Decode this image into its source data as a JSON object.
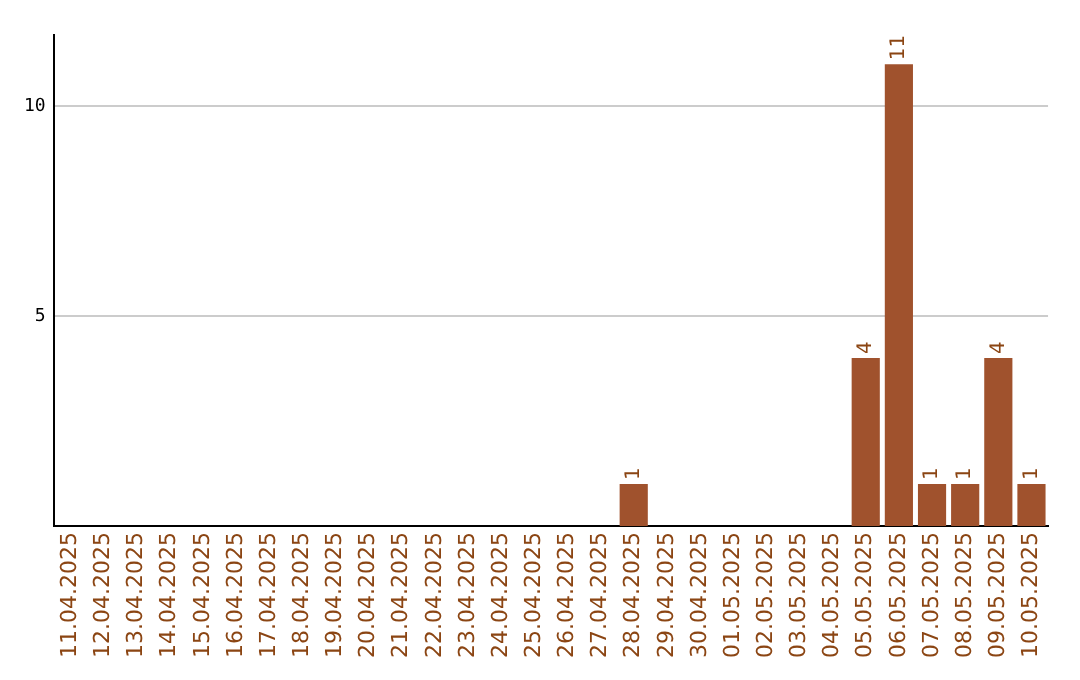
{
  "chart_data": {
    "type": "bar",
    "categories": [
      "11.04.2025",
      "12.04.2025",
      "13.04.2025",
      "14.04.2025",
      "15.04.2025",
      "16.04.2025",
      "17.04.2025",
      "18.04.2025",
      "19.04.2025",
      "20.04.2025",
      "21.04.2025",
      "22.04.2025",
      "23.04.2025",
      "24.04.2025",
      "25.04.2025",
      "26.04.2025",
      "27.04.2025",
      "28.04.2025",
      "29.04.2025",
      "30.04.2025",
      "01.05.2025",
      "02.05.2025",
      "03.05.2025",
      "04.05.2025",
      "05.05.2025",
      "06.05.2025",
      "07.05.2025",
      "08.05.2025",
      "09.05.2025",
      "10.05.2025"
    ],
    "values": [
      0,
      0,
      0,
      0,
      0,
      0,
      0,
      0,
      0,
      0,
      0,
      0,
      0,
      0,
      0,
      0,
      0,
      1,
      0,
      0,
      0,
      0,
      0,
      0,
      4,
      11,
      1,
      1,
      4,
      1
    ],
    "value_labels": [
      null,
      null,
      null,
      null,
      null,
      null,
      null,
      null,
      null,
      null,
      null,
      null,
      null,
      null,
      null,
      null,
      null,
      "1",
      null,
      null,
      null,
      null,
      null,
      null,
      "4",
      "11",
      "1",
      "1",
      "4",
      "1"
    ],
    "color": "#a0522d",
    "ylim": [
      0,
      11.7
    ],
    "yticks": [
      5,
      10
    ],
    "grid": "y"
  }
}
